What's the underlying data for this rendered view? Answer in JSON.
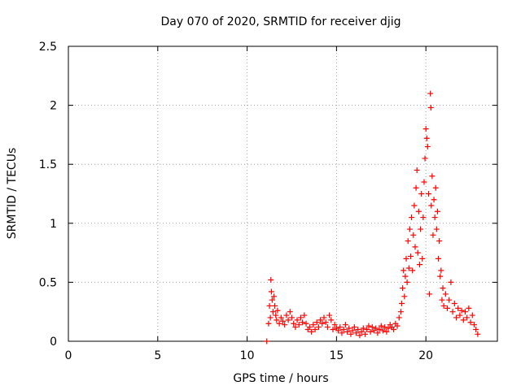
{
  "chart_data": {
    "type": "scatter",
    "title": "Day 070 of 2020, SRMTID for receiver djig",
    "xlabel": "GPS time / hours",
    "ylabel": "SRMTID / TECUs",
    "xlim": [
      0,
      24
    ],
    "ylim": [
      0,
      2.5
    ],
    "xticks": [
      0,
      5,
      10,
      15,
      20
    ],
    "yticks": [
      0,
      0.5,
      1,
      1.5,
      2,
      2.5
    ],
    "xtick_labels": [
      "0",
      "5",
      "10",
      "15",
      "20"
    ],
    "ytick_labels": [
      "0",
      "0.5",
      "1",
      "1.5",
      "2",
      "2.5"
    ],
    "grid": true,
    "marker": "+",
    "marker_color": "#ff0000",
    "series": [
      {
        "name": "SRMTID",
        "points": [
          [
            11.1,
            0.0
          ],
          [
            11.2,
            0.15
          ],
          [
            11.25,
            0.3
          ],
          [
            11.3,
            0.2
          ],
          [
            11.33,
            0.52
          ],
          [
            11.36,
            0.42
          ],
          [
            11.4,
            0.35
          ],
          [
            11.45,
            0.25
          ],
          [
            11.5,
            0.38
          ],
          [
            11.55,
            0.3
          ],
          [
            11.6,
            0.22
          ],
          [
            11.65,
            0.18
          ],
          [
            11.7,
            0.26
          ],
          [
            11.8,
            0.15
          ],
          [
            11.9,
            0.2
          ],
          [
            12.0,
            0.17
          ],
          [
            12.1,
            0.14
          ],
          [
            12.2,
            0.22
          ],
          [
            12.3,
            0.18
          ],
          [
            12.4,
            0.25
          ],
          [
            12.5,
            0.2
          ],
          [
            12.6,
            0.15
          ],
          [
            12.7,
            0.12
          ],
          [
            12.8,
            0.18
          ],
          [
            12.9,
            0.14
          ],
          [
            13.0,
            0.2
          ],
          [
            13.1,
            0.16
          ],
          [
            13.2,
            0.22
          ],
          [
            13.3,
            0.15
          ],
          [
            13.4,
            0.1
          ],
          [
            13.5,
            0.12
          ],
          [
            13.6,
            0.08
          ],
          [
            13.7,
            0.14
          ],
          [
            13.8,
            0.1
          ],
          [
            13.9,
            0.16
          ],
          [
            14.0,
            0.12
          ],
          [
            14.1,
            0.18
          ],
          [
            14.2,
            0.15
          ],
          [
            14.3,
            0.2
          ],
          [
            14.4,
            0.16
          ],
          [
            14.5,
            0.12
          ],
          [
            14.6,
            0.22
          ],
          [
            14.7,
            0.18
          ],
          [
            14.8,
            0.1
          ],
          [
            14.9,
            0.14
          ],
          [
            15.0,
            0.11
          ],
          [
            15.1,
            0.09
          ],
          [
            15.2,
            0.12
          ],
          [
            15.3,
            0.07
          ],
          [
            15.4,
            0.1
          ],
          [
            15.5,
            0.14
          ],
          [
            15.6,
            0.08
          ],
          [
            15.7,
            0.11
          ],
          [
            15.8,
            0.06
          ],
          [
            15.9,
            0.09
          ],
          [
            16.0,
            0.12
          ],
          [
            16.1,
            0.07
          ],
          [
            16.2,
            0.1
          ],
          [
            16.3,
            0.05
          ],
          [
            16.4,
            0.08
          ],
          [
            16.5,
            0.11
          ],
          [
            16.6,
            0.06
          ],
          [
            16.7,
            0.1
          ],
          [
            16.8,
            0.13
          ],
          [
            16.9,
            0.08
          ],
          [
            17.0,
            0.12
          ],
          [
            17.1,
            0.09
          ],
          [
            17.2,
            0.11
          ],
          [
            17.3,
            0.07
          ],
          [
            17.4,
            0.1
          ],
          [
            17.5,
            0.13
          ],
          [
            17.6,
            0.09
          ],
          [
            17.7,
            0.12
          ],
          [
            17.8,
            0.08
          ],
          [
            17.9,
            0.11
          ],
          [
            18.0,
            0.14
          ],
          [
            18.1,
            0.12
          ],
          [
            18.2,
            0.1
          ],
          [
            18.3,
            0.15
          ],
          [
            18.4,
            0.13
          ],
          [
            18.5,
            0.2
          ],
          [
            18.6,
            0.25
          ],
          [
            18.65,
            0.32
          ],
          [
            18.7,
            0.45
          ],
          [
            18.75,
            0.6
          ],
          [
            18.8,
            0.38
          ],
          [
            18.85,
            0.55
          ],
          [
            18.9,
            0.7
          ],
          [
            18.95,
            0.5
          ],
          [
            19.0,
            0.85
          ],
          [
            19.05,
            0.62
          ],
          [
            19.1,
            0.95
          ],
          [
            19.15,
            0.72
          ],
          [
            19.2,
            1.05
          ],
          [
            19.25,
            0.6
          ],
          [
            19.3,
            0.9
          ],
          [
            19.35,
            1.15
          ],
          [
            19.4,
            0.8
          ],
          [
            19.45,
            1.3
          ],
          [
            19.5,
            1.45
          ],
          [
            19.55,
            0.75
          ],
          [
            19.6,
            1.1
          ],
          [
            19.65,
            0.65
          ],
          [
            19.7,
            0.95
          ],
          [
            19.75,
            1.25
          ],
          [
            19.8,
            0.7
          ],
          [
            19.85,
            1.05
          ],
          [
            19.9,
            1.35
          ],
          [
            19.95,
            1.55
          ],
          [
            20.0,
            1.8
          ],
          [
            20.05,
            1.72
          ],
          [
            20.1,
            1.65
          ],
          [
            20.15,
            1.25
          ],
          [
            20.2,
            0.4
          ],
          [
            20.25,
            2.1
          ],
          [
            20.28,
            1.98
          ],
          [
            20.3,
            1.15
          ],
          [
            20.35,
            1.4
          ],
          [
            20.4,
            0.9
          ],
          [
            20.45,
            1.2
          ],
          [
            20.5,
            1.05
          ],
          [
            20.55,
            1.3
          ],
          [
            20.6,
            0.95
          ],
          [
            20.65,
            1.1
          ],
          [
            20.7,
            0.7
          ],
          [
            20.75,
            0.85
          ],
          [
            20.8,
            0.55
          ],
          [
            20.85,
            0.6
          ],
          [
            20.9,
            0.35
          ],
          [
            20.95,
            0.45
          ],
          [
            21.0,
            0.3
          ],
          [
            21.1,
            0.4
          ],
          [
            21.2,
            0.28
          ],
          [
            21.3,
            0.35
          ],
          [
            21.4,
            0.5
          ],
          [
            21.5,
            0.25
          ],
          [
            21.6,
            0.32
          ],
          [
            21.7,
            0.2
          ],
          [
            21.8,
            0.28
          ],
          [
            21.9,
            0.22
          ],
          [
            22.0,
            0.26
          ],
          [
            22.1,
            0.18
          ],
          [
            22.2,
            0.25
          ],
          [
            22.3,
            0.2
          ],
          [
            22.4,
            0.28
          ],
          [
            22.5,
            0.16
          ],
          [
            22.6,
            0.22
          ],
          [
            22.7,
            0.14
          ],
          [
            22.8,
            0.1
          ],
          [
            22.9,
            0.06
          ]
        ]
      }
    ]
  }
}
